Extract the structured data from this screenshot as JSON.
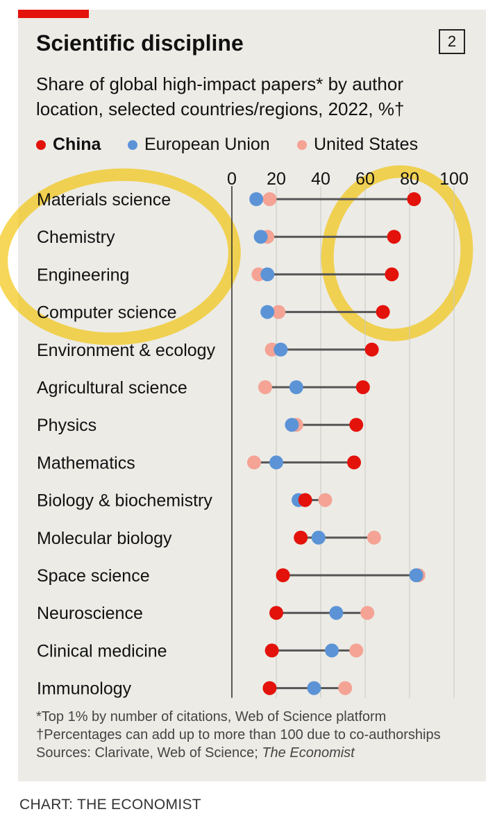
{
  "header": {
    "title": "Scientific discipline",
    "badge": "2",
    "subtitle": "Share of global high-impact papers* by author location, selected countries/regions, 2022, %†"
  },
  "colors": {
    "china": "#e3120b",
    "eu": "#5b93d6",
    "us": "#f4a394",
    "accent": "#e3120b",
    "highlight": "#f2c200"
  },
  "legend": [
    {
      "label": "China",
      "color": "#e3120b",
      "bold": true
    },
    {
      "label": "European Union",
      "color": "#5b93d6",
      "bold": false
    },
    {
      "label": "United States",
      "color": "#f4a394",
      "bold": false
    }
  ],
  "chart_data": {
    "type": "dot-plot",
    "xlim": [
      0,
      100
    ],
    "ticks": [
      0,
      20,
      40,
      60,
      80,
      100
    ],
    "categories": [
      "Materials science",
      "Chemistry",
      "Engineering",
      "Computer science",
      "Environment & ecology",
      "Agricultural science",
      "Physics",
      "Mathematics",
      "Biology & biochemistry",
      "Molecular biology",
      "Space science",
      "Neuroscience",
      "Clinical medicine",
      "Immunology"
    ],
    "series": [
      {
        "name": "China",
        "values": [
          82,
          73,
          72,
          68,
          63,
          59,
          56,
          55,
          33,
          31,
          23,
          20,
          18,
          17
        ]
      },
      {
        "name": "European Union",
        "values": [
          11,
          13,
          16,
          16,
          22,
          29,
          27,
          20,
          30,
          39,
          83,
          47,
          45,
          37
        ]
      },
      {
        "name": "United States",
        "values": [
          17,
          16,
          12,
          21,
          18,
          15,
          29,
          10,
          42,
          64,
          84,
          61,
          56,
          51
        ]
      }
    ]
  },
  "notes": {
    "line1": "*Top 1% by number of citations, Web of Science platform",
    "line2": "†Percentages can add up to more than 100 due to co-authorships",
    "line3_prefix": "Sources: Clarivate, Web of Science; ",
    "line3_source": "The Economist"
  },
  "credit": "CHART: THE ECONOMIST"
}
